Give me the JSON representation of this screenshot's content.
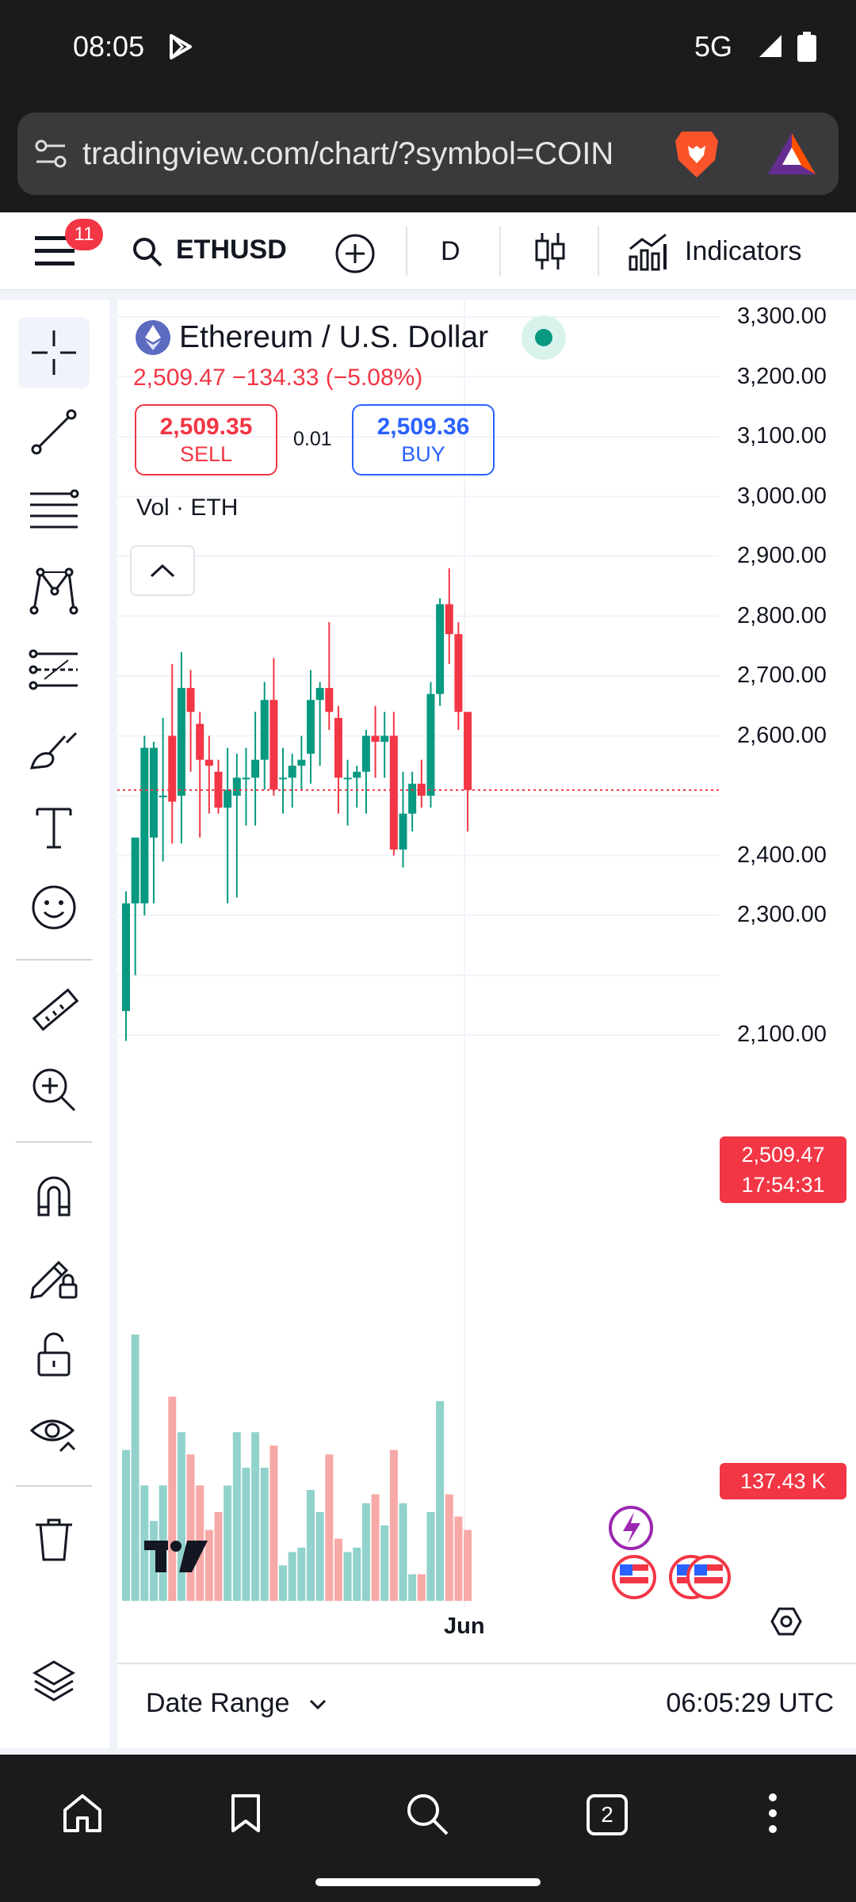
{
  "status": {
    "time": "08:05",
    "network": "5G"
  },
  "browser": {
    "url": "tradingview.com/chart/?symbol=COIN",
    "tab_count": "2"
  },
  "toolbar": {
    "notification_count": "11",
    "symbol": "ETHUSD",
    "interval": "D",
    "indicators_label": "Indicators"
  },
  "legend": {
    "title": "Ethereum / U.S. Dollar",
    "price_line": "2,509.47  −134.33 (−5.08%)",
    "sell_price": "2,509.35",
    "sell_label": "SELL",
    "spread": "0.01",
    "buy_price": "2,509.36",
    "buy_label": "BUY",
    "volume_label": "Vol · ETH"
  },
  "price_axis": [
    "3,300.00",
    "3,200.00",
    "3,100.00",
    "3,000.00",
    "2,900.00",
    "2,800.00",
    "2,700.00",
    "2,600.00",
    "2,400.00",
    "2,300.00",
    "2,100.00"
  ],
  "last_price_tag": {
    "price": "2,509.47",
    "countdown": "17:54:31"
  },
  "volume_tag": "137.43 K",
  "x_axis_label": "Jun",
  "bottom": {
    "date_range_label": "Date Range",
    "clock": "06:05:29 UTC"
  },
  "colors": {
    "up": "#089981",
    "down": "#f23645",
    "up_vol": "#92d2cc",
    "down_vol": "#f7a9a7",
    "accent": "#2962ff"
  },
  "chart_data": {
    "type": "candlestick",
    "price_range": [
      2100,
      3300
    ],
    "candles": [
      {
        "o": 2140,
        "h": 2340,
        "l": 2090,
        "c": 2320
      },
      {
        "o": 2320,
        "h": 2430,
        "l": 2200,
        "c": 2430
      },
      {
        "o": 2320,
        "h": 2600,
        "l": 2300,
        "c": 2580
      },
      {
        "o": 2430,
        "h": 2590,
        "l": 2320,
        "c": 2580
      },
      {
        "o": 2500,
        "h": 2630,
        "l": 2390,
        "c": 2500
      },
      {
        "o": 2600,
        "h": 2720,
        "l": 2420,
        "c": 2490
      },
      {
        "o": 2500,
        "h": 2740,
        "l": 2420,
        "c": 2680
      },
      {
        "o": 2680,
        "h": 2710,
        "l": 2540,
        "c": 2640
      },
      {
        "o": 2620,
        "h": 2640,
        "l": 2430,
        "c": 2560
      },
      {
        "o": 2560,
        "h": 2600,
        "l": 2470,
        "c": 2550
      },
      {
        "o": 2540,
        "h": 2560,
        "l": 2470,
        "c": 2480
      },
      {
        "o": 2480,
        "h": 2580,
        "l": 2320,
        "c": 2510
      },
      {
        "o": 2500,
        "h": 2570,
        "l": 2330,
        "c": 2530
      },
      {
        "o": 2530,
        "h": 2580,
        "l": 2450,
        "c": 2530
      },
      {
        "o": 2530,
        "h": 2640,
        "l": 2450,
        "c": 2560
      },
      {
        "o": 2560,
        "h": 2690,
        "l": 2510,
        "c": 2660
      },
      {
        "o": 2660,
        "h": 2730,
        "l": 2500,
        "c": 2510
      },
      {
        "o": 2530,
        "h": 2580,
        "l": 2470,
        "c": 2530
      },
      {
        "o": 2530,
        "h": 2570,
        "l": 2480,
        "c": 2550
      },
      {
        "o": 2550,
        "h": 2600,
        "l": 2510,
        "c": 2560
      },
      {
        "o": 2570,
        "h": 2710,
        "l": 2520,
        "c": 2660
      },
      {
        "o": 2660,
        "h": 2690,
        "l": 2550,
        "c": 2680
      },
      {
        "o": 2680,
        "h": 2790,
        "l": 2610,
        "c": 2640
      },
      {
        "o": 2630,
        "h": 2650,
        "l": 2470,
        "c": 2530
      },
      {
        "o": 2530,
        "h": 2560,
        "l": 2450,
        "c": 2530
      },
      {
        "o": 2530,
        "h": 2550,
        "l": 2480,
        "c": 2540
      },
      {
        "o": 2540,
        "h": 2610,
        "l": 2470,
        "c": 2600
      },
      {
        "o": 2600,
        "h": 2650,
        "l": 2530,
        "c": 2590
      },
      {
        "o": 2590,
        "h": 2640,
        "l": 2530,
        "c": 2600
      },
      {
        "o": 2600,
        "h": 2640,
        "l": 2400,
        "c": 2410
      },
      {
        "o": 2410,
        "h": 2540,
        "l": 2380,
        "c": 2470
      },
      {
        "o": 2470,
        "h": 2540,
        "l": 2440,
        "c": 2520
      },
      {
        "o": 2520,
        "h": 2560,
        "l": 2480,
        "c": 2500
      },
      {
        "o": 2500,
        "h": 2690,
        "l": 2480,
        "c": 2670
      },
      {
        "o": 2670,
        "h": 2830,
        "l": 2650,
        "c": 2820
      },
      {
        "o": 2820,
        "h": 2880,
        "l": 2720,
        "c": 2770
      },
      {
        "o": 2770,
        "h": 2790,
        "l": 2610,
        "c": 2640
      },
      {
        "o": 2640,
        "h": 2640,
        "l": 2440,
        "c": 2509.47
      }
    ],
    "volumes": [
      0.34,
      0.6,
      0.26,
      0.18,
      0.26,
      0.46,
      0.38,
      0.33,
      0.26,
      0.16,
      0.2,
      0.26,
      0.38,
      0.3,
      0.38,
      0.3,
      0.35,
      0.08,
      0.11,
      0.12,
      0.25,
      0.2,
      0.33,
      0.14,
      0.11,
      0.12,
      0.22,
      0.24,
      0.17,
      0.34,
      0.22,
      0.06,
      0.06,
      0.2,
      0.45,
      0.24,
      0.19,
      0.16
    ]
  }
}
